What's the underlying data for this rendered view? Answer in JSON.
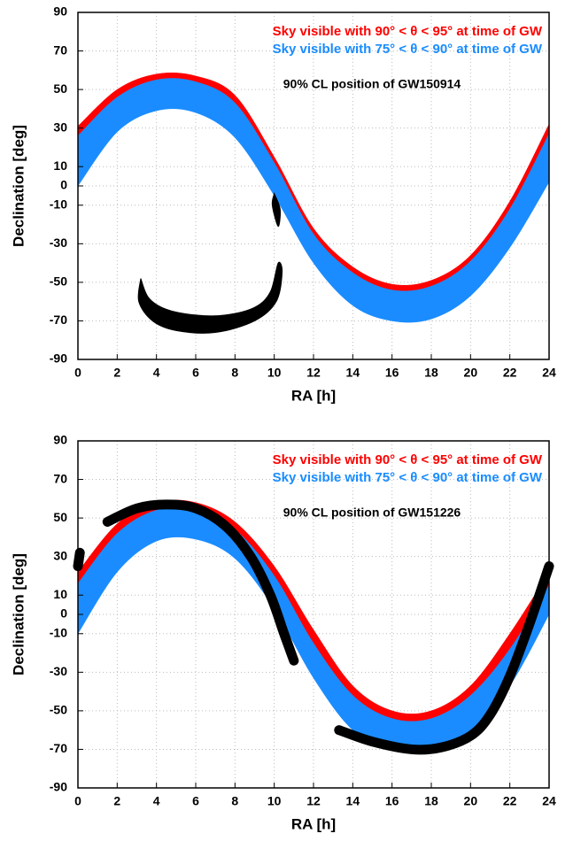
{
  "chart_data": [
    {
      "type": "band",
      "xlabel": "RA [h]",
      "ylabel": "Declination [deg]",
      "xlim": [
        0,
        24
      ],
      "xticks": [
        0,
        2,
        4,
        6,
        8,
        10,
        12,
        14,
        16,
        18,
        20,
        22,
        24
      ],
      "ylim": [
        -90,
        90
      ],
      "yticks": [
        -90,
        -70,
        -50,
        -30,
        -10,
        0,
        10,
        30,
        50,
        70,
        90
      ],
      "grid": true,
      "x": [
        0,
        2,
        4,
        6,
        8,
        10,
        12,
        14,
        16,
        18,
        20,
        22,
        24
      ],
      "series": [
        {
          "name": "Sky visible with 90° < θ < 95° at time of GW",
          "color": "#ff0000",
          "upper": [
            31,
            50,
            58,
            57,
            47,
            15,
            -22,
            -42,
            -51,
            -49,
            -36,
            -8,
            32
          ],
          "lower": [
            26,
            46,
            55,
            54,
            43,
            12,
            -25,
            -45,
            -54,
            -52,
            -39,
            -12,
            27
          ]
        },
        {
          "name": "Sky visible with 75° < θ < 90° at time of GW",
          "color": "#1a8cff",
          "upper": [
            26,
            46,
            55,
            54,
            43,
            12,
            -25,
            -45,
            -54,
            -52,
            -39,
            -12,
            27
          ],
          "lower": [
            0,
            28,
            39,
            38,
            25,
            -5,
            -40,
            -62,
            -70,
            -69,
            -57,
            -32,
            2
          ]
        }
      ],
      "region": {
        "label": "90% CL position of GW150914",
        "color": "#000000",
        "style": "fill",
        "shapes": [
          {
            "x": [
              3.2,
              3.6,
              4.5,
              6,
              7.5,
              9,
              9.8,
              10.2,
              10.4,
              10.1,
              9,
              7,
              5,
              3.8,
              3.1
            ],
            "y": [
              -48,
              -58,
              -64,
              -67,
              -67,
              -63,
              -55,
              -40,
              -45,
              -60,
              -70,
              -76,
              -75,
              -70,
              -60
            ]
          },
          {
            "x": [
              10,
              10.3,
              10.2,
              9.9
            ],
            "y": [
              -4,
              -12,
              -21,
              -10
            ]
          }
        ]
      }
    },
    {
      "type": "band",
      "xlabel": "RA [h]",
      "ylabel": "Declination [deg]",
      "xlim": [
        0,
        24
      ],
      "xticks": [
        0,
        2,
        4,
        6,
        8,
        10,
        12,
        14,
        16,
        18,
        20,
        22,
        24
      ],
      "ylim": [
        -90,
        90
      ],
      "yticks": [
        -90,
        -70,
        -50,
        -30,
        -10,
        0,
        10,
        30,
        50,
        70,
        90
      ],
      "grid": true,
      "x": [
        0,
        2,
        4,
        6,
        8,
        10,
        12,
        14,
        16,
        18,
        20,
        22,
        24
      ],
      "series": [
        {
          "name": "Sky visible with 90° < θ < 95° at time of GW",
          "color": "#ff0000",
          "upper": [
            22,
            47,
            58,
            58,
            48,
            25,
            -8,
            -37,
            -50,
            -50,
            -37,
            -10,
            22
          ],
          "lower": [
            16,
            42,
            54,
            54,
            44,
            20,
            -15,
            -42,
            -54,
            -54,
            -42,
            -18,
            15
          ]
        },
        {
          "name": "Sky visible with 75° < θ < 90° at time of GW",
          "color": "#1a8cff",
          "upper": [
            16,
            42,
            54,
            54,
            44,
            20,
            -15,
            -42,
            -54,
            -54,
            -42,
            -18,
            15
          ],
          "lower": [
            -10,
            22,
            38,
            39,
            29,
            3,
            -33,
            -60,
            -70,
            -70,
            -60,
            -37,
            0
          ]
        }
      ],
      "region": {
        "label": "90% CL position of GW151226",
        "color": "#000000",
        "style": "stroke",
        "shapes": [
          {
            "x": [
              1.5,
              3,
              4.5,
              6,
              7.5,
              8.8,
              9.8,
              10.5,
              11
            ],
            "y": [
              48,
              55,
              57,
              55,
              46,
              30,
              10,
              -10,
              -24
            ]
          },
          {
            "x": [
              13.3,
              15,
              17,
              18.5,
              20,
              21,
              22,
              23,
              24
            ],
            "y": [
              -60,
              -66,
              -70,
              -69,
              -63,
              -52,
              -32,
              -5,
              25
            ]
          },
          {
            "x": [
              0,
              0.1
            ],
            "y": [
              25,
              32
            ]
          }
        ]
      }
    }
  ]
}
